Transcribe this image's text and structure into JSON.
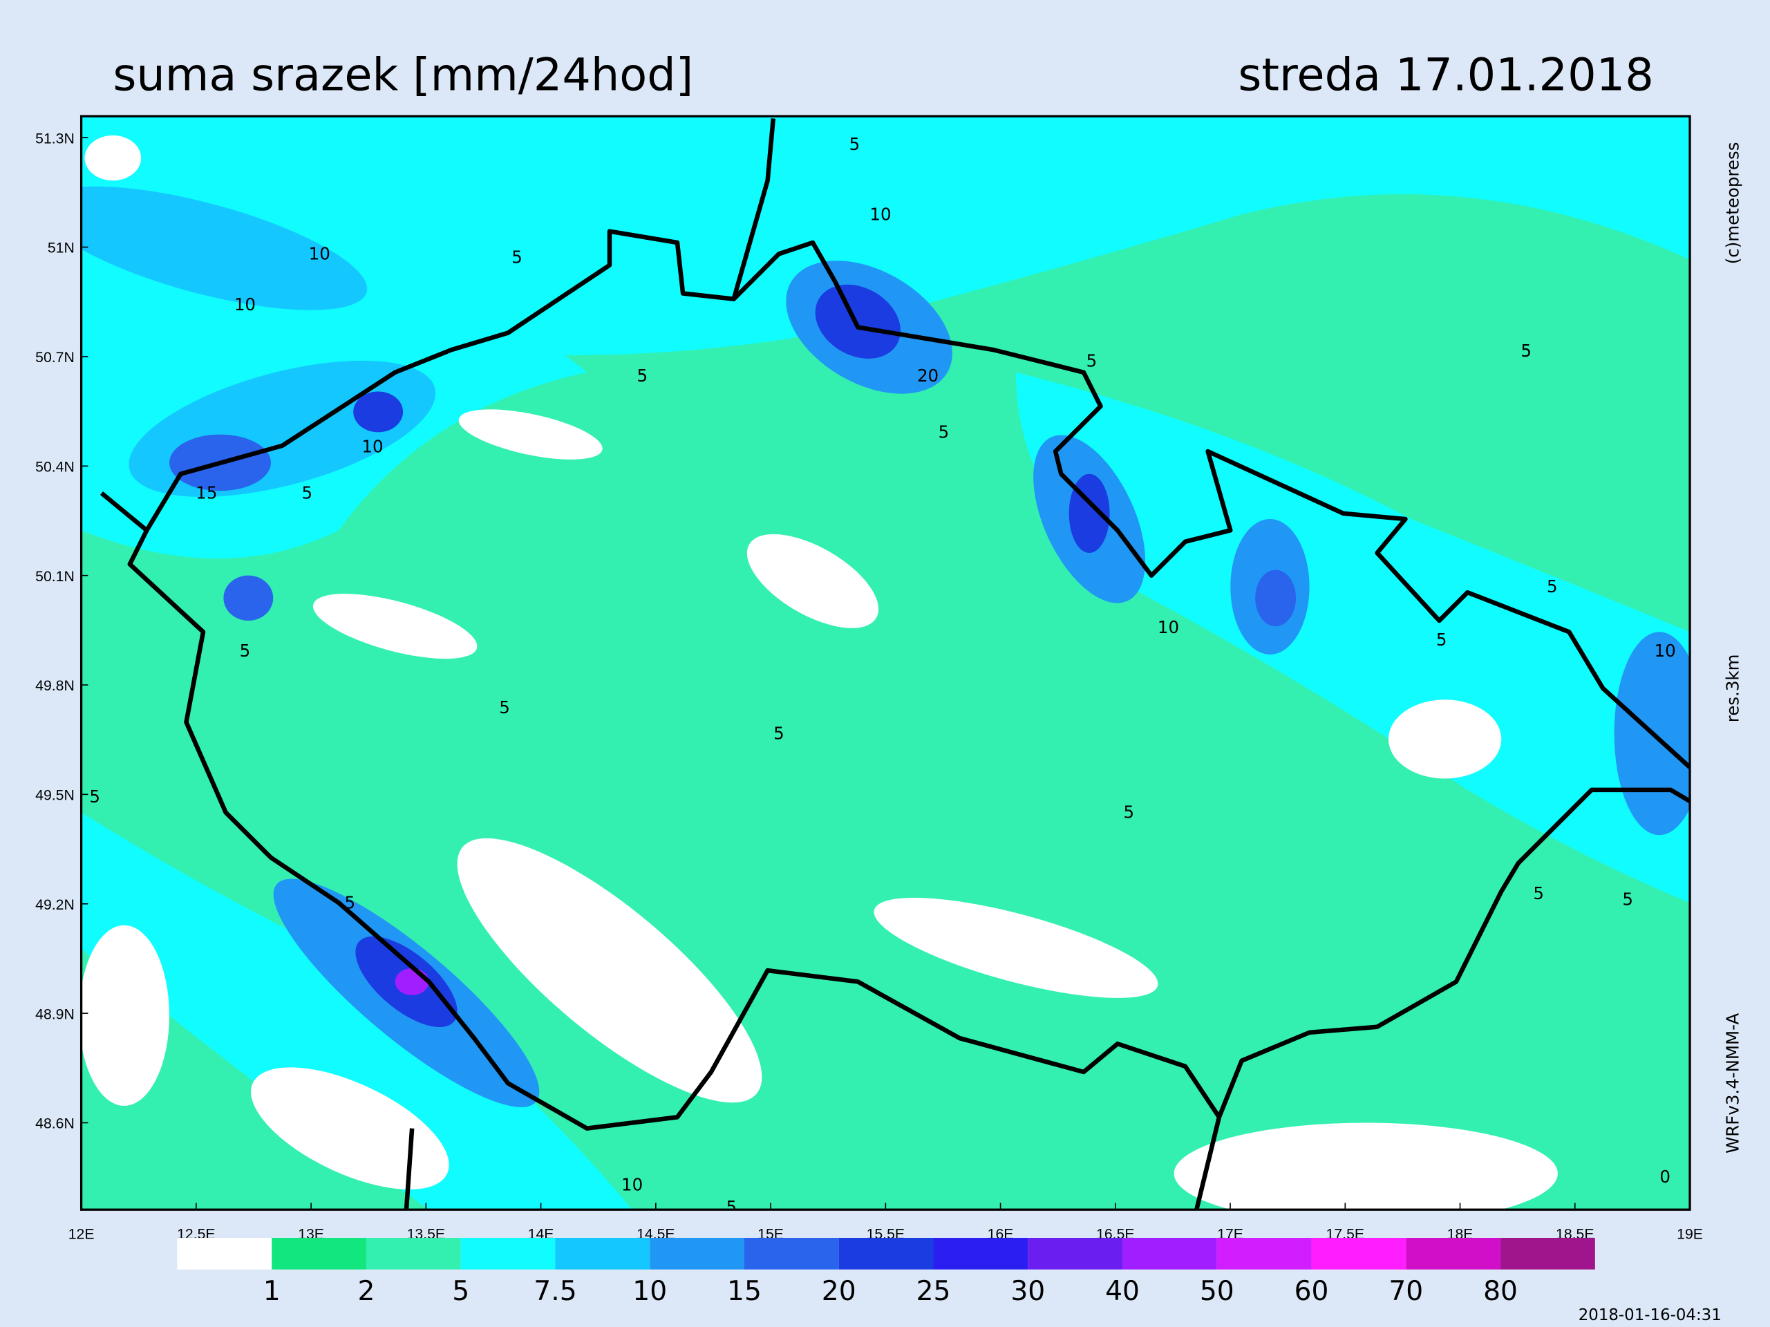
{
  "header": {
    "title": "suma srazek [mm/24hod]",
    "date": "streda 17.01.2018"
  },
  "axes": {
    "y_labels": [
      "51.3N",
      "51N",
      "50.7N",
      "50.4N",
      "50.1N",
      "49.8N",
      "49.5N",
      "49.2N",
      "48.9N",
      "48.6N"
    ],
    "x_labels": [
      "12E",
      "12.5E",
      "13E",
      "13.5E",
      "14E",
      "14.5E",
      "15E",
      "15.5E",
      "16E",
      "16.5E",
      "17E",
      "17.5E",
      "18E",
      "18.5E",
      "19E"
    ]
  },
  "legend": {
    "colors": [
      "#ffffff",
      "#12e67e",
      "#33f0b0",
      "#10fcff",
      "#14c8ff",
      "#2096f5",
      "#2a64ec",
      "#1a3ce0",
      "#2a1ef0",
      "#6a1ef0",
      "#a01eff",
      "#d21eff",
      "#ff1eff",
      "#d20fc8",
      "#a0148c"
    ],
    "labels": [
      "1",
      "2",
      "5",
      "7.5",
      "10",
      "15",
      "20",
      "25",
      "30",
      "40",
      "50",
      "60",
      "70",
      "80"
    ]
  },
  "side_texts": {
    "copyright": "(c)meteopress",
    "resolution": "res.3km",
    "model": "WRFv3.4-NMM-A"
  },
  "timestamp": "2018-01-16-04:31",
  "contour_labels": [
    "5",
    "10",
    "10",
    "5",
    "10",
    "5",
    "5",
    "5",
    "20",
    "5",
    "10",
    "15",
    "5",
    "5",
    "10",
    "5",
    "5",
    "10",
    "5",
    "5",
    "5",
    "5",
    "5",
    "5",
    "5",
    "10",
    "5",
    "0"
  ]
}
